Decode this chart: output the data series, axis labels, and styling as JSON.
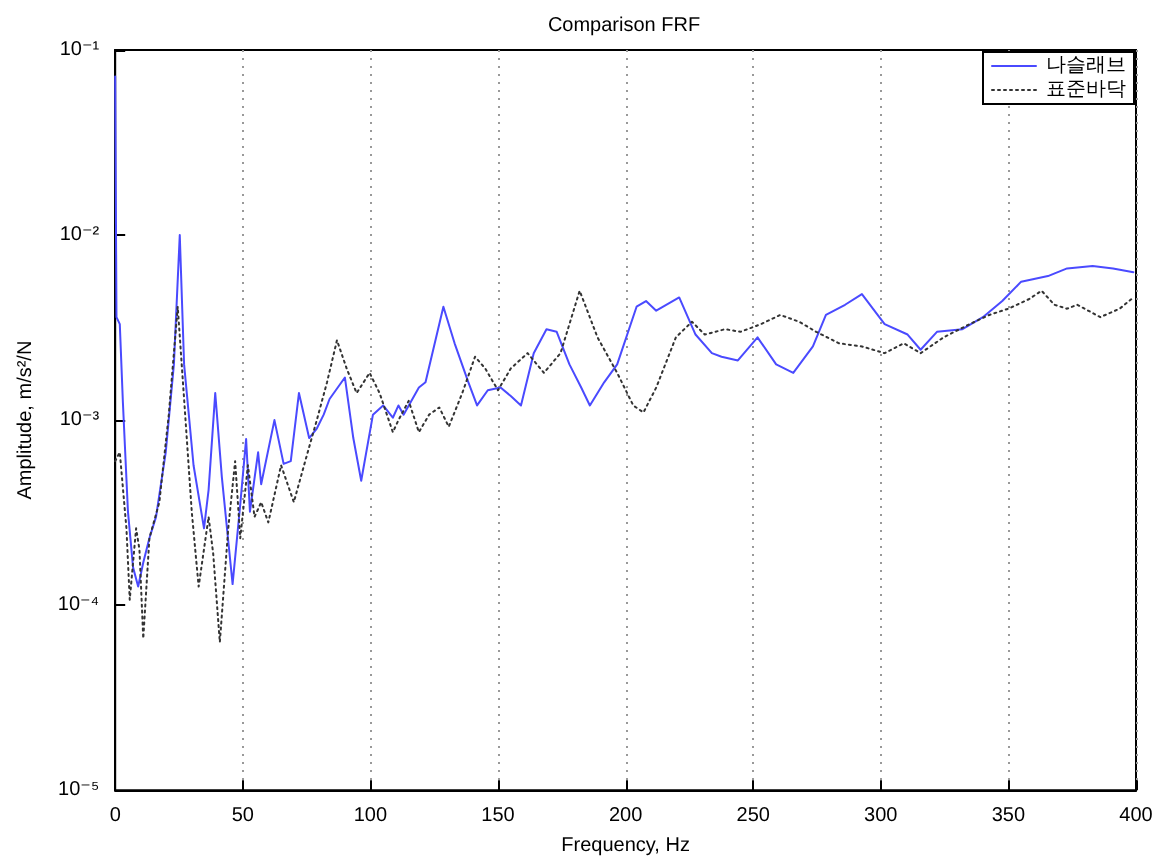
{
  "chart_data": {
    "type": "line",
    "title": "Comparison FRF",
    "xlabel": "Frequency, Hz",
    "ylabel": "Amplitude, m/s²/N",
    "xlim": [
      0,
      400
    ],
    "xticks": [
      0,
      50,
      100,
      150,
      200,
      250,
      300,
      350,
      400
    ],
    "ylim": [
      1e-05,
      0.1
    ],
    "yticks": [
      {
        "value": 1e-05,
        "label": "10⁻⁵"
      },
      {
        "value": 0.0001,
        "label": "10⁻⁴"
      },
      {
        "value": 0.001,
        "label": "10⁻³"
      },
      {
        "value": 0.01,
        "label": "10⁻²"
      },
      {
        "value": 0.1,
        "label": "10⁻¹"
      }
    ],
    "log": "y",
    "grid": "x",
    "legend": "top right",
    "marker": "none",
    "series": [
      {
        "name": "나슬래브",
        "color": "#4a4aff",
        "line_style": "solid",
        "x": [
          0,
          0.5,
          1.8,
          3,
          5,
          7,
          9,
          11,
          13.4,
          16,
          19.8,
          23,
          25.3,
          27,
          30.7,
          34.8,
          36.6,
          39.2,
          41.8,
          46,
          49,
          51.3,
          52.8,
          56,
          57.2,
          62.4,
          66,
          68.8,
          72,
          76,
          79,
          81.7,
          84,
          90,
          93.3,
          96.4,
          101,
          105,
          108.8,
          111,
          113,
          119,
          121.6,
          128.6,
          133,
          138.4,
          141.8,
          146,
          151,
          155,
          159,
          164,
          169,
          173,
          178,
          182.6,
          186,
          191.6,
          196.7,
          204.3,
          208,
          212,
          221,
          227.4,
          233.8,
          237.6,
          244,
          251.7,
          259,
          265.7,
          273.4,
          278.5,
          286,
          292.6,
          301.5,
          310.5,
          315.6,
          322,
          332,
          340,
          347.6,
          355,
          365.5,
          373,
          383,
          391,
          399
        ],
        "values": [
          0.072,
          0.0036,
          0.0033,
          0.00126,
          0.00032,
          0.00016,
          0.000126,
          0.00017,
          0.00023,
          0.0003,
          0.00067,
          0.002,
          0.01,
          0.002,
          0.00057,
          0.00026,
          0.00042,
          0.0014,
          0.00049,
          0.00013,
          0.00035,
          0.00079,
          0.00032,
          0.00067,
          0.00045,
          0.001,
          0.00058,
          0.0006,
          0.0014,
          0.0008,
          0.0009,
          0.00107,
          0.0013,
          0.0017,
          0.0008,
          0.00047,
          0.00107,
          0.0012,
          0.00103,
          0.0012,
          0.00107,
          0.0015,
          0.0016,
          0.0041,
          0.0026,
          0.0016,
          0.0012,
          0.00145,
          0.0015,
          0.00135,
          0.0012,
          0.0023,
          0.0031,
          0.003,
          0.002,
          0.0015,
          0.0012,
          0.0016,
          0.002,
          0.0041,
          0.0044,
          0.0039,
          0.0046,
          0.0029,
          0.0023,
          0.0022,
          0.0021,
          0.0028,
          0.002,
          0.0018,
          0.0025,
          0.0037,
          0.0042,
          0.0048,
          0.0033,
          0.0029,
          0.0024,
          0.003,
          0.0031,
          0.0036,
          0.0044,
          0.0056,
          0.006,
          0.0066,
          0.0068,
          0.0066,
          0.0063
        ]
      },
      {
        "name": "표준바닥",
        "color": "#333333",
        "line_style": "dotted",
        "x": [
          0,
          1.8,
          4.4,
          5.7,
          8.2,
          9.5,
          11,
          13.4,
          17.3,
          21,
          24.5,
          27,
          30,
          32.7,
          36.6,
          38.4,
          41,
          44.3,
          47,
          49,
          52,
          54.6,
          57.2,
          60,
          65,
          70,
          74,
          79,
          83,
          86.9,
          90.7,
          94.6,
          99.7,
          103.6,
          108.8,
          111,
          115,
          119,
          123,
          127,
          130.7,
          136,
          141,
          145,
          150,
          155,
          161.6,
          168,
          174.5,
          182,
          189,
          196.7,
          203,
          207,
          212,
          219.7,
          226,
          231,
          239,
          245,
          253,
          260.6,
          268,
          274.7,
          283.6,
          292.6,
          301.5,
          309,
          315.6,
          324.6,
          334.8,
          342.5,
          350,
          358,
          363,
          368,
          373,
          377,
          386,
          393.6,
          399
        ],
        "values": [
          0.0006,
          0.00067,
          0.00026,
          0.000107,
          0.00026,
          0.0002,
          6.6e-05,
          0.00023,
          0.00036,
          0.00107,
          0.0041,
          0.0013,
          0.00032,
          0.000126,
          0.0003,
          0.00019,
          6.3e-05,
          0.00026,
          0.0006,
          0.00023,
          0.00057,
          0.0003,
          0.00036,
          0.00028,
          0.00057,
          0.00036,
          0.00057,
          0.001,
          0.0016,
          0.0027,
          0.0019,
          0.0014,
          0.0018,
          0.0014,
          0.00086,
          0.001,
          0.00127,
          0.00086,
          0.00107,
          0.00117,
          0.00092,
          0.0014,
          0.0022,
          0.0019,
          0.00145,
          0.0019,
          0.0023,
          0.0018,
          0.0023,
          0.005,
          0.0028,
          0.0018,
          0.0012,
          0.0011,
          0.0015,
          0.0028,
          0.0034,
          0.0029,
          0.0031,
          0.003,
          0.0033,
          0.0037,
          0.0034,
          0.003,
          0.0026,
          0.0025,
          0.0023,
          0.0026,
          0.0023,
          0.0028,
          0.0033,
          0.0037,
          0.004,
          0.0045,
          0.005,
          0.0042,
          0.004,
          0.0042,
          0.0036,
          0.004,
          0.0046
        ]
      }
    ]
  }
}
